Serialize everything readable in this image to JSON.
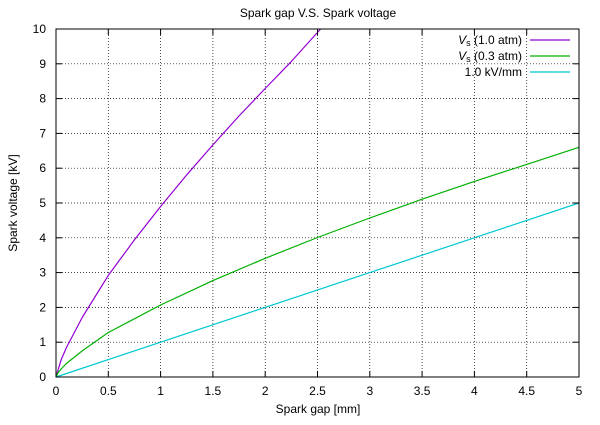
{
  "chart_data": {
    "type": "line",
    "title": "Spark gap V.S. Spark voltage",
    "xlabel": "Spark gap [mm]",
    "ylabel": "Spark voltage [kV]",
    "xlim": [
      0,
      5
    ],
    "ylim": [
      0,
      10
    ],
    "xticks": [
      "0",
      "0.5",
      "1",
      "1.5",
      "2",
      "2.5",
      "3",
      "3.5",
      "4",
      "4.5",
      "5"
    ],
    "yticks": [
      "0",
      "1",
      "2",
      "3",
      "4",
      "5",
      "6",
      "7",
      "8",
      "9",
      "10"
    ],
    "grid": true,
    "legend_position": "top-right",
    "series": [
      {
        "name": "Vs (1.0 atm)",
        "name_main": "V",
        "name_sub": "s",
        "name_rest": " (1.0 atm)",
        "color": "#9400d3",
        "x": [
          0,
          0.05,
          0.1,
          0.25,
          0.5,
          0.75,
          1,
          1.25,
          1.5,
          1.75,
          2,
          2.25,
          2.53
        ],
        "y": [
          0,
          0.5,
          0.85,
          1.71,
          2.92,
          3.94,
          4.9,
          5.81,
          6.67,
          7.5,
          8.29,
          9.07,
          10
        ]
      },
      {
        "name": "Vs (0.3 atm)",
        "name_main": "V",
        "name_sub": "s",
        "name_rest": " (0.3 atm)",
        "color": "#00b000",
        "x": [
          0,
          0.02,
          0.05,
          0.1,
          0.25,
          0.5,
          1,
          1.5,
          2,
          2.5,
          3,
          3.5,
          4,
          4.5,
          5
        ],
        "y": [
          0,
          0.12,
          0.23,
          0.39,
          0.75,
          1.28,
          2.07,
          2.77,
          3.41,
          4.01,
          4.57,
          5.11,
          5.62,
          6.11,
          6.6
        ]
      },
      {
        "name": "1.0 kV/mm",
        "name_main": "1.0 kV/mm",
        "name_sub": "",
        "name_rest": "",
        "color": "#00c8d0",
        "x": [
          0,
          5
        ],
        "y": [
          0,
          5
        ]
      }
    ]
  }
}
